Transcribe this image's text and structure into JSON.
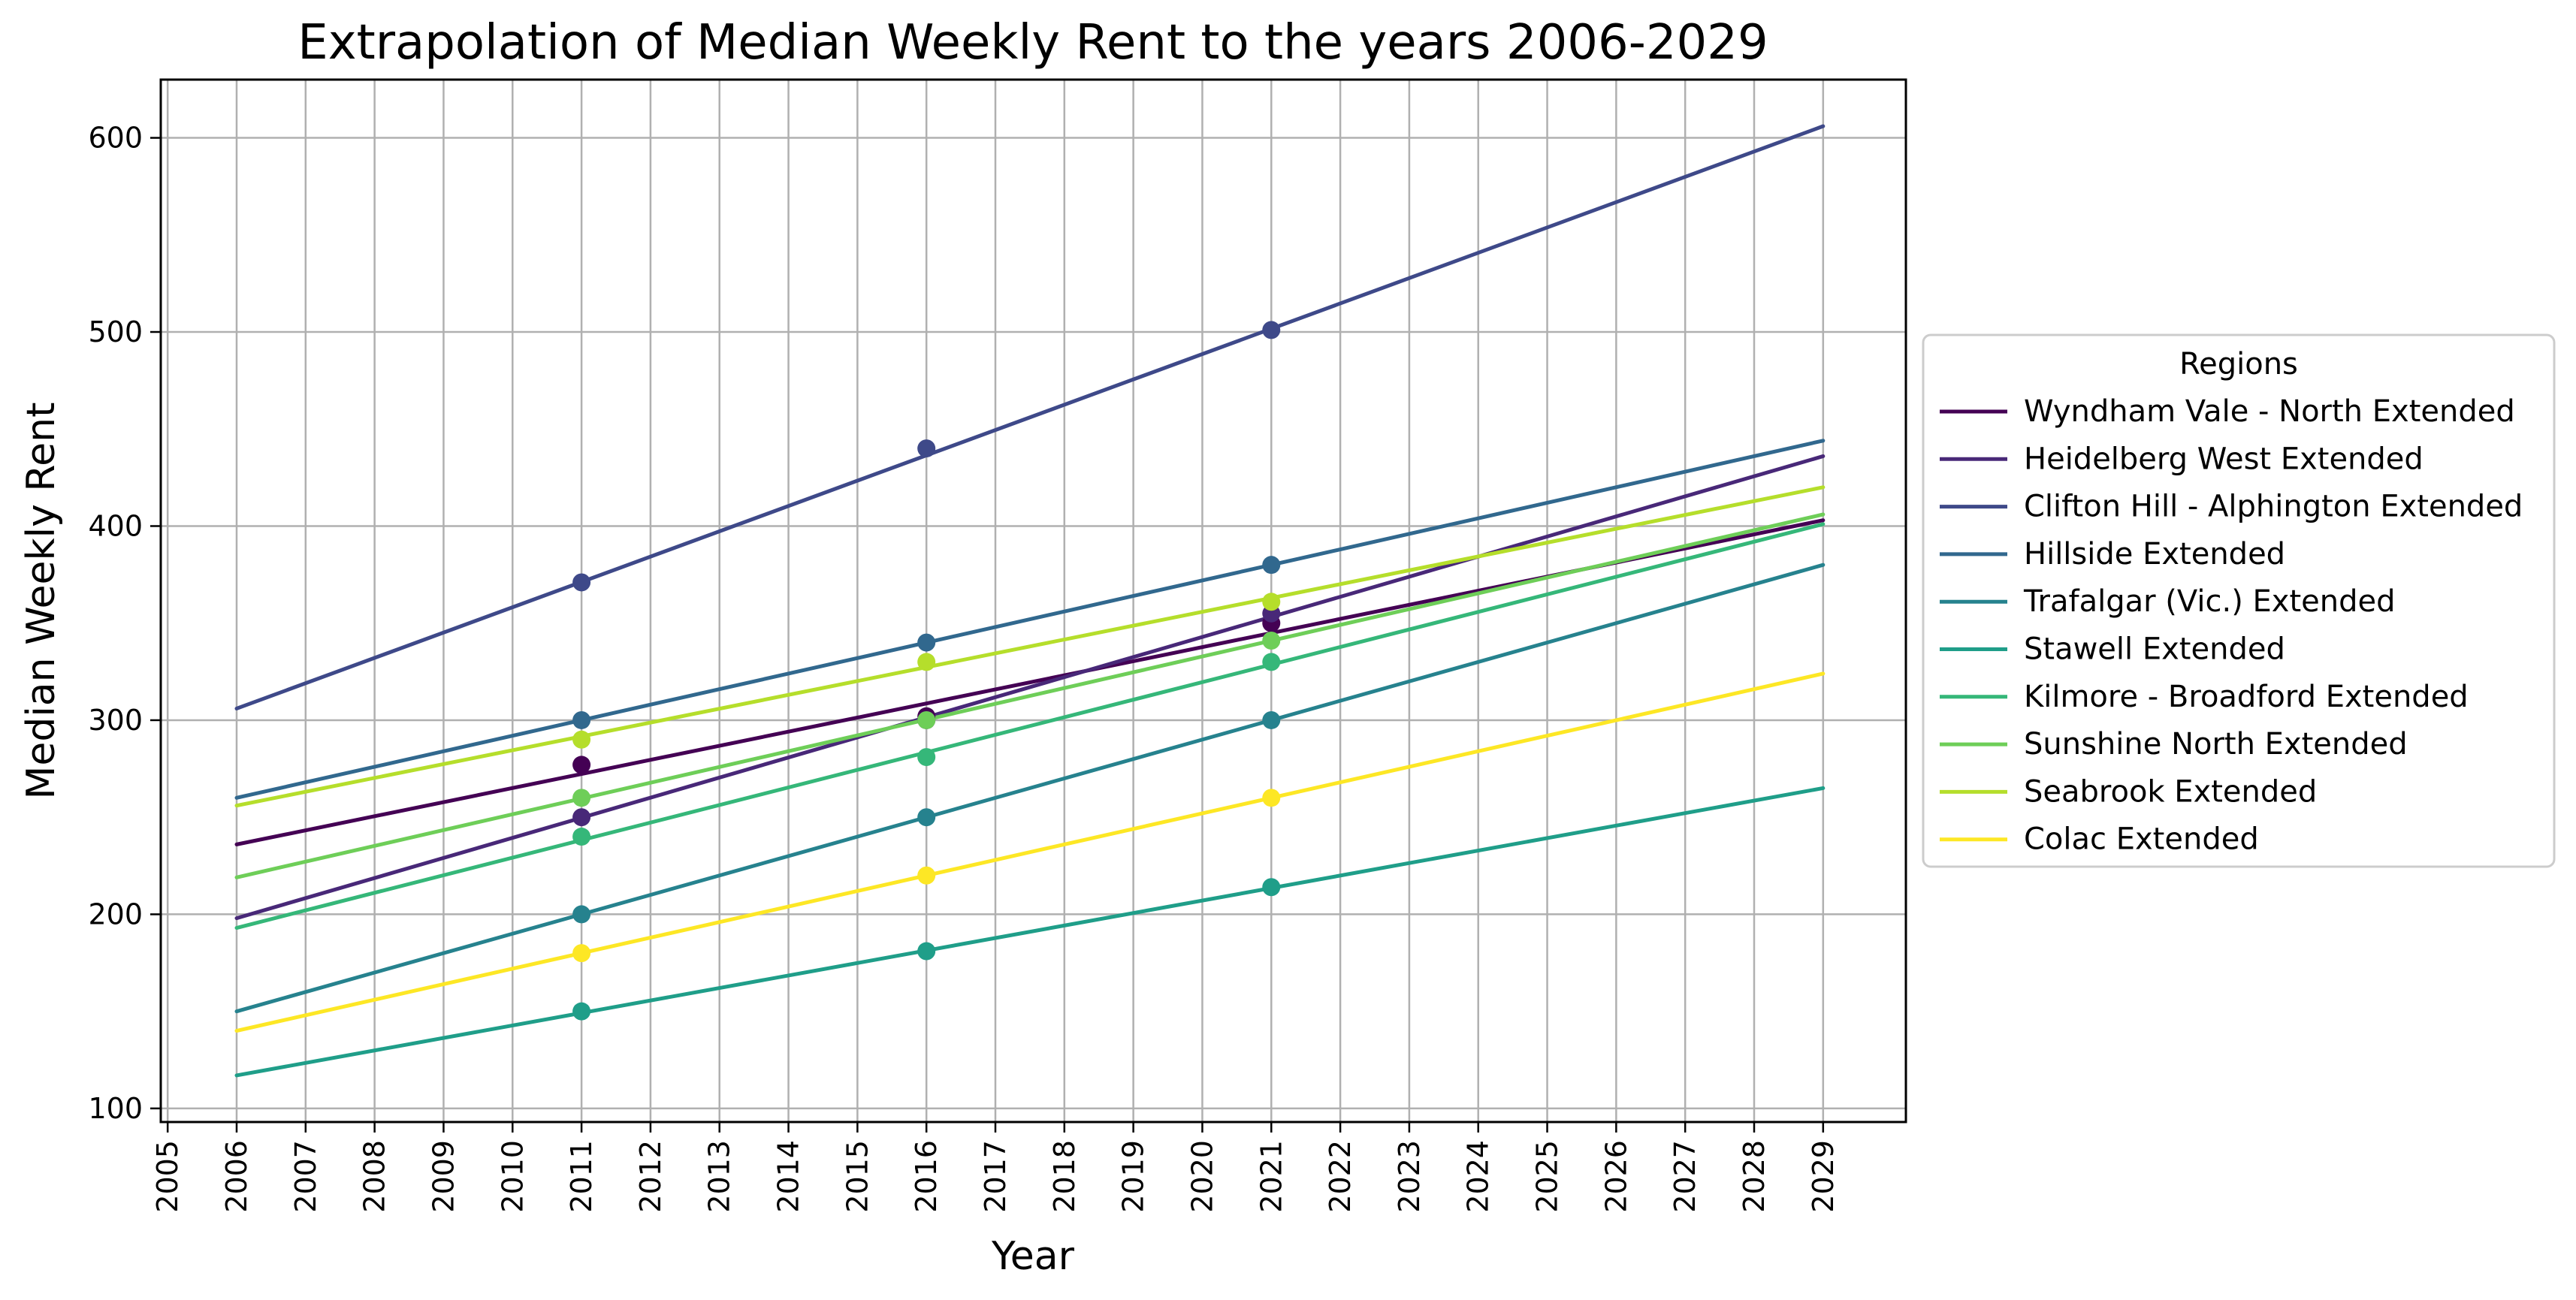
{
  "chart_data": {
    "type": "line",
    "title": "Extrapolation of Median Weekly Rent to the years 2006-2029",
    "xlabel": "Year",
    "ylabel": "Median Weekly Rent",
    "xlim": [
      2004.9,
      2030.2
    ],
    "ylim": [
      93,
      630
    ],
    "x_ticks": [
      2005,
      2006,
      2007,
      2008,
      2009,
      2010,
      2011,
      2012,
      2013,
      2014,
      2015,
      2016,
      2017,
      2018,
      2019,
      2020,
      2021,
      2022,
      2023,
      2024,
      2025,
      2026,
      2027,
      2028,
      2029
    ],
    "y_ticks": [
      100,
      200,
      300,
      400,
      500,
      600
    ],
    "grid": true,
    "legend": {
      "title": "Regions",
      "placement": "outside-right"
    },
    "series": [
      {
        "name": "Wyndham Vale - North Extended",
        "color": "#440154",
        "line": [
          [
            2006,
            236
          ],
          [
            2029,
            403
          ]
        ],
        "points": [
          [
            2011,
            277
          ],
          [
            2016,
            302
          ],
          [
            2021,
            350
          ]
        ]
      },
      {
        "name": "Heidelberg West Extended",
        "color": "#482878",
        "line": [
          [
            2006,
            198
          ],
          [
            2029,
            436
          ]
        ],
        "points": [
          [
            2011,
            250
          ],
          [
            2016,
            300
          ],
          [
            2021,
            355
          ]
        ]
      },
      {
        "name": "Clifton Hill - Alphington Extended",
        "color": "#3e4989",
        "line": [
          [
            2006,
            306
          ],
          [
            2029,
            606
          ]
        ],
        "points": [
          [
            2011,
            371
          ],
          [
            2016,
            440
          ],
          [
            2021,
            501
          ]
        ]
      },
      {
        "name": "Hillside Extended",
        "color": "#31688e",
        "line": [
          [
            2006,
            260
          ],
          [
            2029,
            444
          ]
        ],
        "points": [
          [
            2011,
            300
          ],
          [
            2016,
            340
          ],
          [
            2021,
            380
          ]
        ]
      },
      {
        "name": "Trafalgar (Vic.) Extended",
        "color": "#26828e",
        "line": [
          [
            2006,
            150
          ],
          [
            2029,
            380
          ]
        ],
        "points": [
          [
            2011,
            200
          ],
          [
            2016,
            250
          ],
          [
            2021,
            300
          ]
        ]
      },
      {
        "name": "Stawell Extended",
        "color": "#1f9e89",
        "line": [
          [
            2006,
            117
          ],
          [
            2029,
            265
          ]
        ],
        "points": [
          [
            2011,
            150
          ],
          [
            2016,
            181
          ],
          [
            2021,
            214
          ]
        ]
      },
      {
        "name": "Kilmore - Broadford Extended",
        "color": "#35b779",
        "line": [
          [
            2006,
            193
          ],
          [
            2029,
            401
          ]
        ],
        "points": [
          [
            2011,
            240
          ],
          [
            2016,
            281
          ],
          [
            2021,
            330
          ]
        ]
      },
      {
        "name": "Sunshine North Extended",
        "color": "#6ece58",
        "line": [
          [
            2006,
            219
          ],
          [
            2029,
            406
          ]
        ],
        "points": [
          [
            2011,
            260
          ],
          [
            2016,
            300
          ],
          [
            2021,
            341
          ]
        ]
      },
      {
        "name": "Seabrook Extended",
        "color": "#b5de2b",
        "line": [
          [
            2006,
            256
          ],
          [
            2029,
            420
          ]
        ],
        "points": [
          [
            2011,
            290
          ],
          [
            2016,
            330
          ],
          [
            2021,
            361
          ]
        ]
      },
      {
        "name": "Colac Extended",
        "color": "#fde725",
        "line": [
          [
            2006,
            140
          ],
          [
            2029,
            324
          ]
        ],
        "points": [
          [
            2011,
            180
          ],
          [
            2016,
            220
          ],
          [
            2021,
            260
          ]
        ]
      }
    ]
  }
}
